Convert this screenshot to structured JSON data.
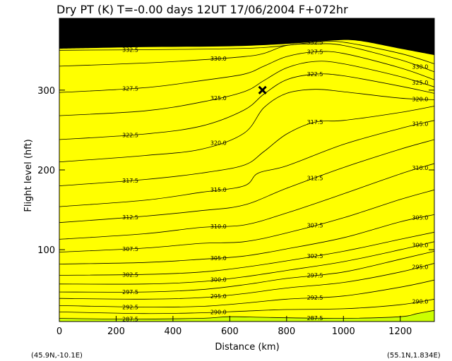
{
  "chart_data": {
    "type": "contour",
    "title": "Dry PT  (K)   T=-0.00 days   12UT 17/06/2004   F+072hr",
    "xlabel": "Distance  (km)",
    "ylabel": "Flight level  (hft)",
    "xlim": [
      0,
      1320
    ],
    "ylim": [
      10,
      390
    ],
    "x_ticks": [
      0,
      200,
      400,
      600,
      800,
      1000,
      1200
    ],
    "x_tick_labels": [
      "0",
      "200",
      "400",
      "600",
      "800",
      "1000",
      "1200"
    ],
    "y_ticks": [
      100,
      200,
      300
    ],
    "y_tick_labels": [
      "100",
      "200",
      "300"
    ],
    "corner_left": "(45.9N,-10.1E)",
    "corner_right": "(55.1N,1.834E)",
    "units": "K",
    "contour_interval": 2.5,
    "grid": false,
    "marker": {
      "symbol": "x",
      "x": 715,
      "y": 300
    },
    "levels": [
      {
        "value": 287.5,
        "label": "287.5",
        "color": "#ccff00",
        "points": [
          [
            0,
            14
          ],
          [
            250,
            13
          ],
          [
            500,
            14
          ],
          [
            600,
            16
          ],
          [
            750,
            15
          ],
          [
            1000,
            14
          ],
          [
            1200,
            16
          ],
          [
            1260,
            20
          ],
          [
            1320,
            24
          ]
        ]
      },
      {
        "value": 290.0,
        "label": "290.0",
        "color": "#ffff00",
        "points": [
          [
            0,
            22
          ],
          [
            300,
            20
          ],
          [
            500,
            21
          ],
          [
            650,
            23
          ],
          [
            800,
            25
          ],
          [
            1000,
            26
          ],
          [
            1200,
            31
          ],
          [
            1320,
            38
          ]
        ]
      },
      {
        "value": 292.5,
        "label": "292.5",
        "color": "#ffee00",
        "points": [
          [
            0,
            30
          ],
          [
            300,
            28
          ],
          [
            500,
            29
          ],
          [
            650,
            33
          ],
          [
            800,
            38
          ],
          [
            1000,
            42
          ],
          [
            1200,
            53
          ],
          [
            1320,
            62
          ]
        ]
      },
      {
        "value": 295.0,
        "label": "295.0",
        "color": "#ffdd00",
        "points": [
          [
            0,
            39
          ],
          [
            300,
            38
          ],
          [
            500,
            40
          ],
          [
            650,
            45
          ],
          [
            800,
            52
          ],
          [
            1000,
            59
          ],
          [
            1200,
            72
          ],
          [
            1320,
            83
          ]
        ]
      },
      {
        "value": 297.5,
        "label": "297.5",
        "color": "#ffc800",
        "points": [
          [
            0,
            47
          ],
          [
            300,
            47
          ],
          [
            500,
            50
          ],
          [
            650,
            56
          ],
          [
            800,
            64
          ],
          [
            1000,
            72
          ],
          [
            1200,
            88
          ],
          [
            1320,
            98
          ]
        ]
      },
      {
        "value": 300.0,
        "label": "300.0",
        "color": "#ffaa00",
        "points": [
          [
            0,
            57
          ],
          [
            300,
            57
          ],
          [
            500,
            60
          ],
          [
            650,
            66
          ],
          [
            800,
            74
          ],
          [
            1000,
            85
          ],
          [
            1200,
            100
          ],
          [
            1320,
            110
          ]
        ]
      },
      {
        "value": 302.5,
        "label": "302.5",
        "color": "#e05a00",
        "points": [
          [
            0,
            68
          ],
          [
            300,
            69
          ],
          [
            500,
            72
          ],
          [
            650,
            78
          ],
          [
            800,
            86
          ],
          [
            1000,
            98
          ],
          [
            1200,
            113
          ],
          [
            1320,
            122
          ]
        ]
      },
      {
        "value": 305.0,
        "label": "305.0",
        "color": "#ff7a00",
        "points": [
          [
            0,
            82
          ],
          [
            300,
            84
          ],
          [
            500,
            88
          ],
          [
            650,
            92
          ],
          [
            800,
            101
          ],
          [
            1000,
            115
          ],
          [
            1200,
            135
          ],
          [
            1320,
            144
          ]
        ]
      },
      {
        "value": 307.5,
        "label": "307.5",
        "color": "#ff5e00",
        "points": [
          [
            0,
            97
          ],
          [
            300,
            102
          ],
          [
            500,
            108
          ],
          [
            650,
            110
          ],
          [
            800,
            121
          ],
          [
            1000,
            140
          ],
          [
            1200,
            163
          ],
          [
            1320,
            175
          ]
        ]
      },
      {
        "value": 310.0,
        "label": "310.0",
        "color": "#ff4400",
        "points": [
          [
            0,
            113
          ],
          [
            300,
            120
          ],
          [
            500,
            128
          ],
          [
            650,
            131
          ],
          [
            800,
            146
          ],
          [
            1000,
            170
          ],
          [
            1200,
            195
          ],
          [
            1320,
            208
          ]
        ]
      },
      {
        "value": 312.5,
        "label": "312.5",
        "color": "#ff2d00",
        "points": [
          [
            0,
            134
          ],
          [
            300,
            142
          ],
          [
            500,
            149
          ],
          [
            650,
            156
          ],
          [
            800,
            177
          ],
          [
            1000,
            203
          ],
          [
            1200,
            226
          ],
          [
            1320,
            238
          ]
        ]
      },
      {
        "value": 315.0,
        "label": "315.0",
        "color": "#ff1800",
        "points": [
          [
            0,
            154
          ],
          [
            300,
            162
          ],
          [
            500,
            172
          ],
          [
            650,
            180
          ],
          [
            700,
            196
          ],
          [
            800,
            205
          ],
          [
            1000,
            232
          ],
          [
            1200,
            252
          ],
          [
            1320,
            262
          ]
        ]
      },
      {
        "value": 317.5,
        "label": "317.5",
        "color": "#ee0000",
        "points": [
          [
            0,
            180
          ],
          [
            300,
            188
          ],
          [
            500,
            196
          ],
          [
            650,
            206
          ],
          [
            720,
            223
          ],
          [
            800,
            245
          ],
          [
            900,
            260
          ],
          [
            1000,
            262
          ],
          [
            1200,
            272
          ],
          [
            1320,
            280
          ]
        ]
      },
      {
        "value": 320.0,
        "label": "320.0",
        "color": "#dd0000",
        "points": [
          [
            0,
            210
          ],
          [
            300,
            218
          ],
          [
            500,
            226
          ],
          [
            650,
            246
          ],
          [
            720,
            278
          ],
          [
            800,
            296
          ],
          [
            900,
            301
          ],
          [
            1000,
            298
          ],
          [
            1200,
            290
          ],
          [
            1320,
            288
          ]
        ]
      },
      {
        "value": 322.5,
        "label": "322.5",
        "color": "#cc0000",
        "points": [
          [
            0,
            238
          ],
          [
            300,
            245
          ],
          [
            500,
            255
          ],
          [
            650,
            275
          ],
          [
            720,
            295
          ],
          [
            800,
            313
          ],
          [
            900,
            320
          ],
          [
            1000,
            318
          ],
          [
            1200,
            305
          ],
          [
            1320,
            296
          ]
        ]
      },
      {
        "value": 325.0,
        "label": "325.0",
        "color": "#bb0000",
        "points": [
          [
            0,
            268
          ],
          [
            300,
            274
          ],
          [
            500,
            285
          ],
          [
            650,
            298
          ],
          [
            720,
            312
          ],
          [
            800,
            328
          ],
          [
            900,
            336
          ],
          [
            1000,
            333
          ],
          [
            1200,
            317
          ],
          [
            1320,
            304
          ]
        ]
      },
      {
        "value": 327.5,
        "label": "327.5",
        "color": "#aa0000",
        "points": [
          [
            0,
            297
          ],
          [
            300,
            303
          ],
          [
            500,
            312
          ],
          [
            650,
            320
          ],
          [
            720,
            330
          ],
          [
            800,
            342
          ],
          [
            900,
            348
          ],
          [
            1000,
            346
          ],
          [
            1200,
            328
          ],
          [
            1320,
            313
          ]
        ]
      },
      {
        "value": 330.0,
        "label": "330.0",
        "color": "#990000",
        "points": [
          [
            0,
            330
          ],
          [
            300,
            334
          ],
          [
            500,
            338
          ],
          [
            650,
            342
          ],
          [
            720,
            346
          ],
          [
            800,
            356
          ],
          [
            900,
            358
          ],
          [
            1000,
            356
          ],
          [
            1200,
            338
          ],
          [
            1320,
            323
          ]
        ]
      },
      {
        "value": 332.5,
        "label": "332.5",
        "color": "#880000",
        "points": [
          [
            0,
            350
          ],
          [
            400,
            351
          ],
          [
            700,
            353
          ],
          [
            900,
            360
          ],
          [
            1000,
            360
          ],
          [
            1200,
            346
          ],
          [
            1320,
            333
          ]
        ]
      }
    ],
    "missing_region": {
      "color": "#000000",
      "label": "",
      "points": [
        [
          0,
          352
        ],
        [
          300,
          354
        ],
        [
          600,
          355
        ],
        [
          800,
          358
        ],
        [
          950,
          362
        ],
        [
          1050,
          362
        ],
        [
          1200,
          352
        ],
        [
          1320,
          344
        ]
      ]
    }
  }
}
